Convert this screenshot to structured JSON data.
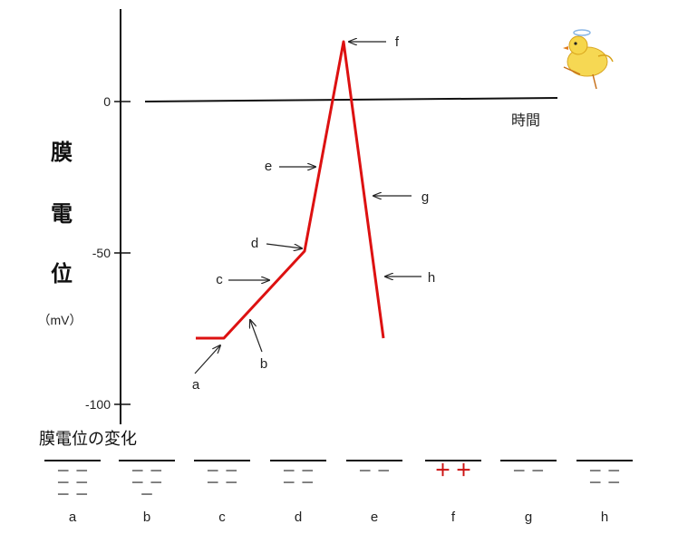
{
  "diagram": {
    "y_axis_label_chars": [
      "膜",
      "電",
      "位"
    ],
    "y_axis_unit": "（mV）",
    "ticks": [
      {
        "label": "0",
        "value": 0
      },
      {
        "label": "-50",
        "value": -50
      },
      {
        "label": "-100",
        "value": -100
      }
    ],
    "x_axis_label": "時間",
    "trace_color": "#dd1111",
    "point_labels": [
      "a",
      "b",
      "c",
      "d",
      "e",
      "f",
      "g",
      "h"
    ],
    "mascot_icon": "chick-mascot-icon"
  },
  "membrane_section": {
    "title": "膜電位の変化",
    "panels": [
      {
        "label": "a",
        "charge_rows": [
          "－ －",
          "－ －",
          "－ －"
        ],
        "sign": "minus"
      },
      {
        "label": "b",
        "charge_rows": [
          "－ －",
          "－ －",
          "－"
        ],
        "sign": "minus"
      },
      {
        "label": "c",
        "charge_rows": [
          "－ －",
          "－ －"
        ],
        "sign": "minus"
      },
      {
        "label": "d",
        "charge_rows": [
          "－ －",
          "－ －"
        ],
        "sign": "minus"
      },
      {
        "label": "e",
        "charge_rows": [
          "－ －"
        ],
        "sign": "minus"
      },
      {
        "label": "f",
        "charge_rows": [
          "＋ ＋"
        ],
        "sign": "plus"
      },
      {
        "label": "g",
        "charge_rows": [
          "－ －"
        ],
        "sign": "minus"
      },
      {
        "label": "h",
        "charge_rows": [
          "－ －",
          "－ －"
        ],
        "sign": "minus"
      }
    ]
  }
}
